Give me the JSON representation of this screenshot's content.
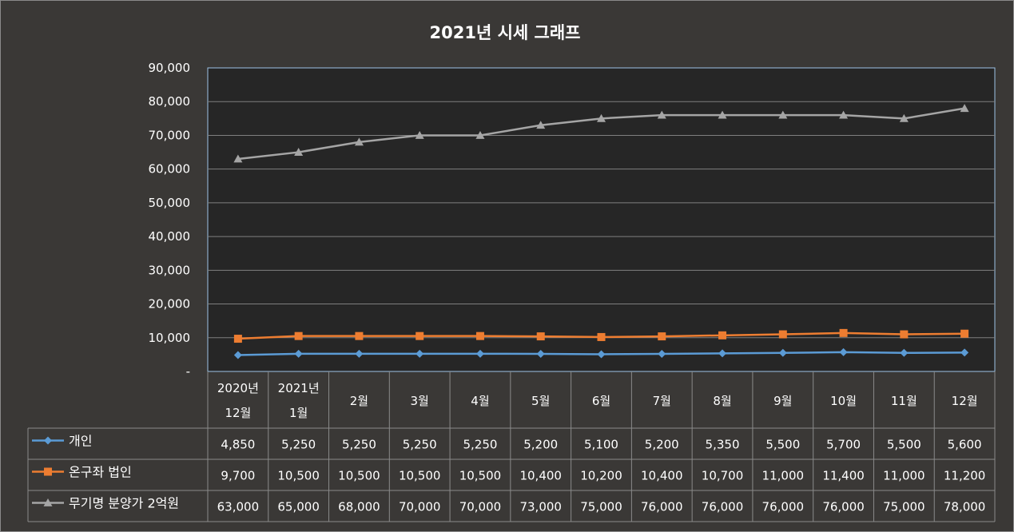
{
  "chart_data": {
    "type": "line",
    "title": "2021년 시세 그래프",
    "categories": [
      [
        "2020년",
        "12월"
      ],
      [
        "2021년",
        "1월"
      ],
      [
        "2월"
      ],
      [
        "3월"
      ],
      [
        "4월"
      ],
      [
        "5월"
      ],
      [
        "6월"
      ],
      [
        "7월"
      ],
      [
        "8월"
      ],
      [
        "9월"
      ],
      [
        "10월"
      ],
      [
        "11월"
      ],
      [
        "12월"
      ]
    ],
    "ylim": [
      0,
      90000
    ],
    "yticks": [
      0,
      10000,
      20000,
      30000,
      40000,
      50000,
      60000,
      70000,
      80000,
      90000
    ],
    "ytick_labels": [
      "-",
      "10,000",
      "20,000",
      "30,000",
      "40,000",
      "50,000",
      "60,000",
      "70,000",
      "80,000",
      "90,000"
    ],
    "grid": true,
    "legend": "data-table",
    "series": [
      {
        "name": "개인",
        "color": "#5b9bd5",
        "marker": "diamond",
        "values": [
          4850,
          5250,
          5250,
          5250,
          5250,
          5200,
          5100,
          5200,
          5350,
          5500,
          5700,
          5500,
          5600
        ],
        "labels": [
          "4,850",
          "5,250",
          "5,250",
          "5,250",
          "5,250",
          "5,200",
          "5,100",
          "5,200",
          "5,350",
          "5,500",
          "5,700",
          "5,500",
          "5,600"
        ]
      },
      {
        "name": "온구좌 법인",
        "color": "#ed7d31",
        "marker": "square",
        "values": [
          9700,
          10500,
          10500,
          10500,
          10500,
          10400,
          10200,
          10400,
          10700,
          11000,
          11400,
          11000,
          11200
        ],
        "labels": [
          "9,700",
          "10,500",
          "10,500",
          "10,500",
          "10,500",
          "10,400",
          "10,200",
          "10,400",
          "10,700",
          "11,000",
          "11,400",
          "11,000",
          "11,200"
        ]
      },
      {
        "name": "무기명 분양가 2억원",
        "color": "#a5a5a5",
        "marker": "triangle",
        "values": [
          63000,
          65000,
          68000,
          70000,
          70000,
          73000,
          75000,
          76000,
          76000,
          76000,
          76000,
          75000,
          78000
        ],
        "labels": [
          "63,000",
          "65,000",
          "68,000",
          "70,000",
          "70,000",
          "73,000",
          "75,000",
          "76,000",
          "76,000",
          "76,000",
          "76,000",
          "75,000",
          "78,000"
        ]
      }
    ]
  }
}
